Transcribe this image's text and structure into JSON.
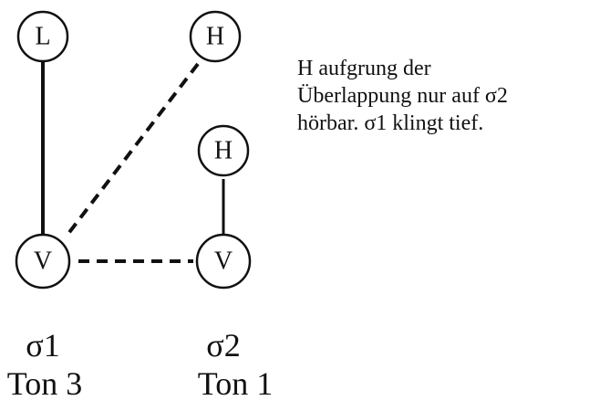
{
  "nodes": {
    "sigma1_high": "L",
    "sigma1_low": "V",
    "sigma2_top": "H",
    "sigma2_mid": "H",
    "sigma2_low": "V"
  },
  "columns": {
    "sigma1": {
      "name": "σ1",
      "tone": "Ton 3"
    },
    "sigma2": {
      "name": "σ2",
      "tone": "Ton 1"
    }
  },
  "note_lines": [
    "H aufgrung der",
    "Überlappung nur auf σ2",
    "hörbar. σ1 klingt tief."
  ]
}
